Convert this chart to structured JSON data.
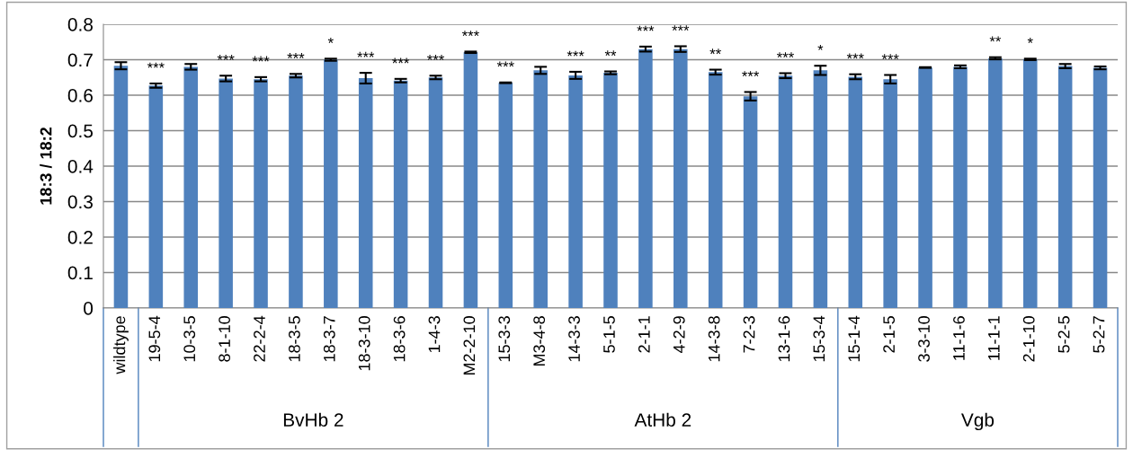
{
  "chart_data": {
    "type": "bar",
    "ylabel": "18:3 / 18:2",
    "categories": [
      "wildtype",
      "19-5-4",
      "10-3-5",
      "8-1-10",
      "22-2-4",
      "18-3-5",
      "18-3-7",
      "18-3-10",
      "18-3-6",
      "1-4-3",
      "M2-2-10",
      "15-3-3",
      "M3-4-8",
      "14-3-3",
      "5-1-5",
      "2-1-1",
      "4-2-9",
      "14-3-8",
      "7-2-3",
      "13-1-6",
      "15-3-4",
      "15-1-4",
      "2-1-5",
      "3-3-10",
      "11-1-6",
      "11-1-1",
      "2-1-10",
      "5-2-5",
      "5-2-7"
    ],
    "values": [
      0.683,
      0.627,
      0.68,
      0.647,
      0.645,
      0.655,
      0.7,
      0.648,
      0.641,
      0.65,
      0.721,
      0.635,
      0.67,
      0.656,
      0.663,
      0.73,
      0.73,
      0.665,
      0.597,
      0.655,
      0.67,
      0.652,
      0.645,
      0.678,
      0.68,
      0.704,
      0.701,
      0.682,
      0.677
    ],
    "errors": [
      0.01,
      0.006,
      0.008,
      0.008,
      0.006,
      0.005,
      0.003,
      0.015,
      0.005,
      0.005,
      0.002,
      0.001,
      0.01,
      0.01,
      0.004,
      0.007,
      0.008,
      0.007,
      0.012,
      0.007,
      0.013,
      0.007,
      0.012,
      0.001,
      0.004,
      0.003,
      0.002,
      0.006,
      0.004
    ],
    "color": "#4f81bd",
    "ylim": [
      0,
      0.8
    ],
    "yticks": [
      0,
      0.1,
      0.2,
      0.3,
      0.4,
      0.5,
      0.6,
      0.7,
      0.8
    ],
    "grid": "y",
    "value_labels": [
      null,
      "***",
      null,
      "***",
      "***",
      "***",
      "*",
      "***",
      "***",
      "***",
      "***",
      "***",
      null,
      "***",
      "**",
      "***",
      "***",
      "**",
      "***",
      "***",
      "*",
      "***",
      "***",
      null,
      null,
      "**",
      "*",
      null,
      null
    ],
    "annotations": [
      "BvHb 2",
      "AtHb 2",
      "Vgb"
    ]
  }
}
